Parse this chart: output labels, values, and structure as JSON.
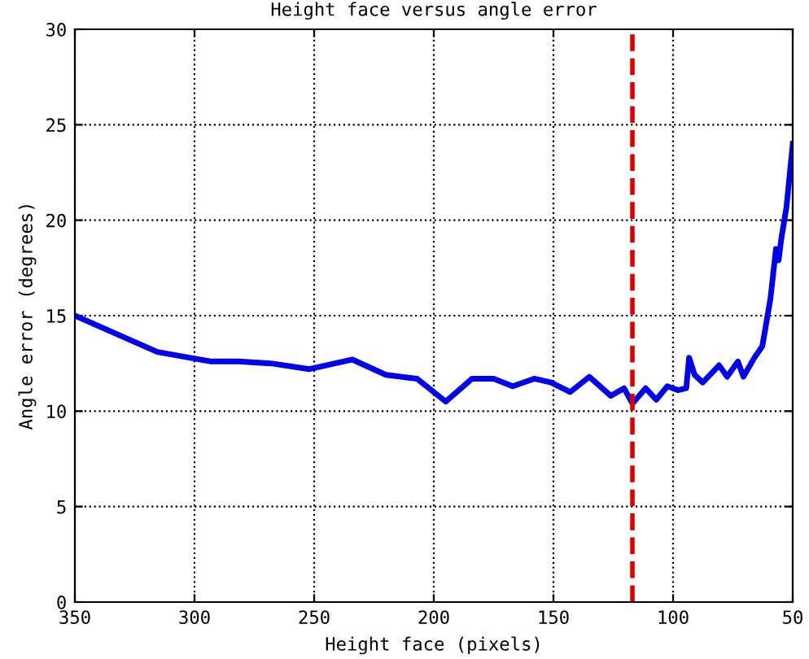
{
  "chart_data": {
    "type": "line",
    "title": "Height face versus angle error",
    "xlabel": "Height face (pixels)",
    "ylabel": "Angle error (degrees)",
    "xlim": [
      350,
      50
    ],
    "ylim": [
      0,
      30
    ],
    "xticks": [
      350,
      300,
      250,
      200,
      150,
      100,
      50
    ],
    "yticks": [
      0,
      5,
      10,
      15,
      20,
      25,
      30
    ],
    "grid": true,
    "line_style": "solid",
    "marker": "none",
    "series": [
      {
        "color": "#0000ee",
        "x": [
          350,
          315.5,
          293,
          281.5,
          268,
          252,
          234,
          220,
          207,
          195,
          184,
          175,
          167,
          158,
          151,
          143,
          135,
          126,
          120.5,
          117,
          111.5,
          107,
          102.4,
          98,
          94.5,
          93.3,
          91,
          87.6,
          80.8,
          77.4,
          72.9,
          70.6,
          66,
          62.7,
          59.3,
          57,
          55.9,
          54.8,
          52.6,
          50.3,
          50
        ],
        "values": [
          15,
          13.1,
          12.6,
          12.6,
          12.5,
          12.2,
          12.7,
          11.9,
          11.7,
          10.5,
          11.7,
          11.7,
          11.3,
          11.7,
          11.5,
          11,
          11.8,
          10.8,
          11.2,
          10.4,
          11.2,
          10.6,
          11.3,
          11.1,
          11.2,
          12.8,
          11.9,
          11.5,
          12.4,
          11.8,
          12.6,
          11.8,
          12.8,
          13.4,
          15.9,
          18.5,
          17.9,
          19,
          20.7,
          23.6,
          24
        ]
      }
    ],
    "ref_lines": [
      {
        "axis": "x",
        "value": 117,
        "color": "#dd0000",
        "line_style": "dashed"
      }
    ]
  }
}
